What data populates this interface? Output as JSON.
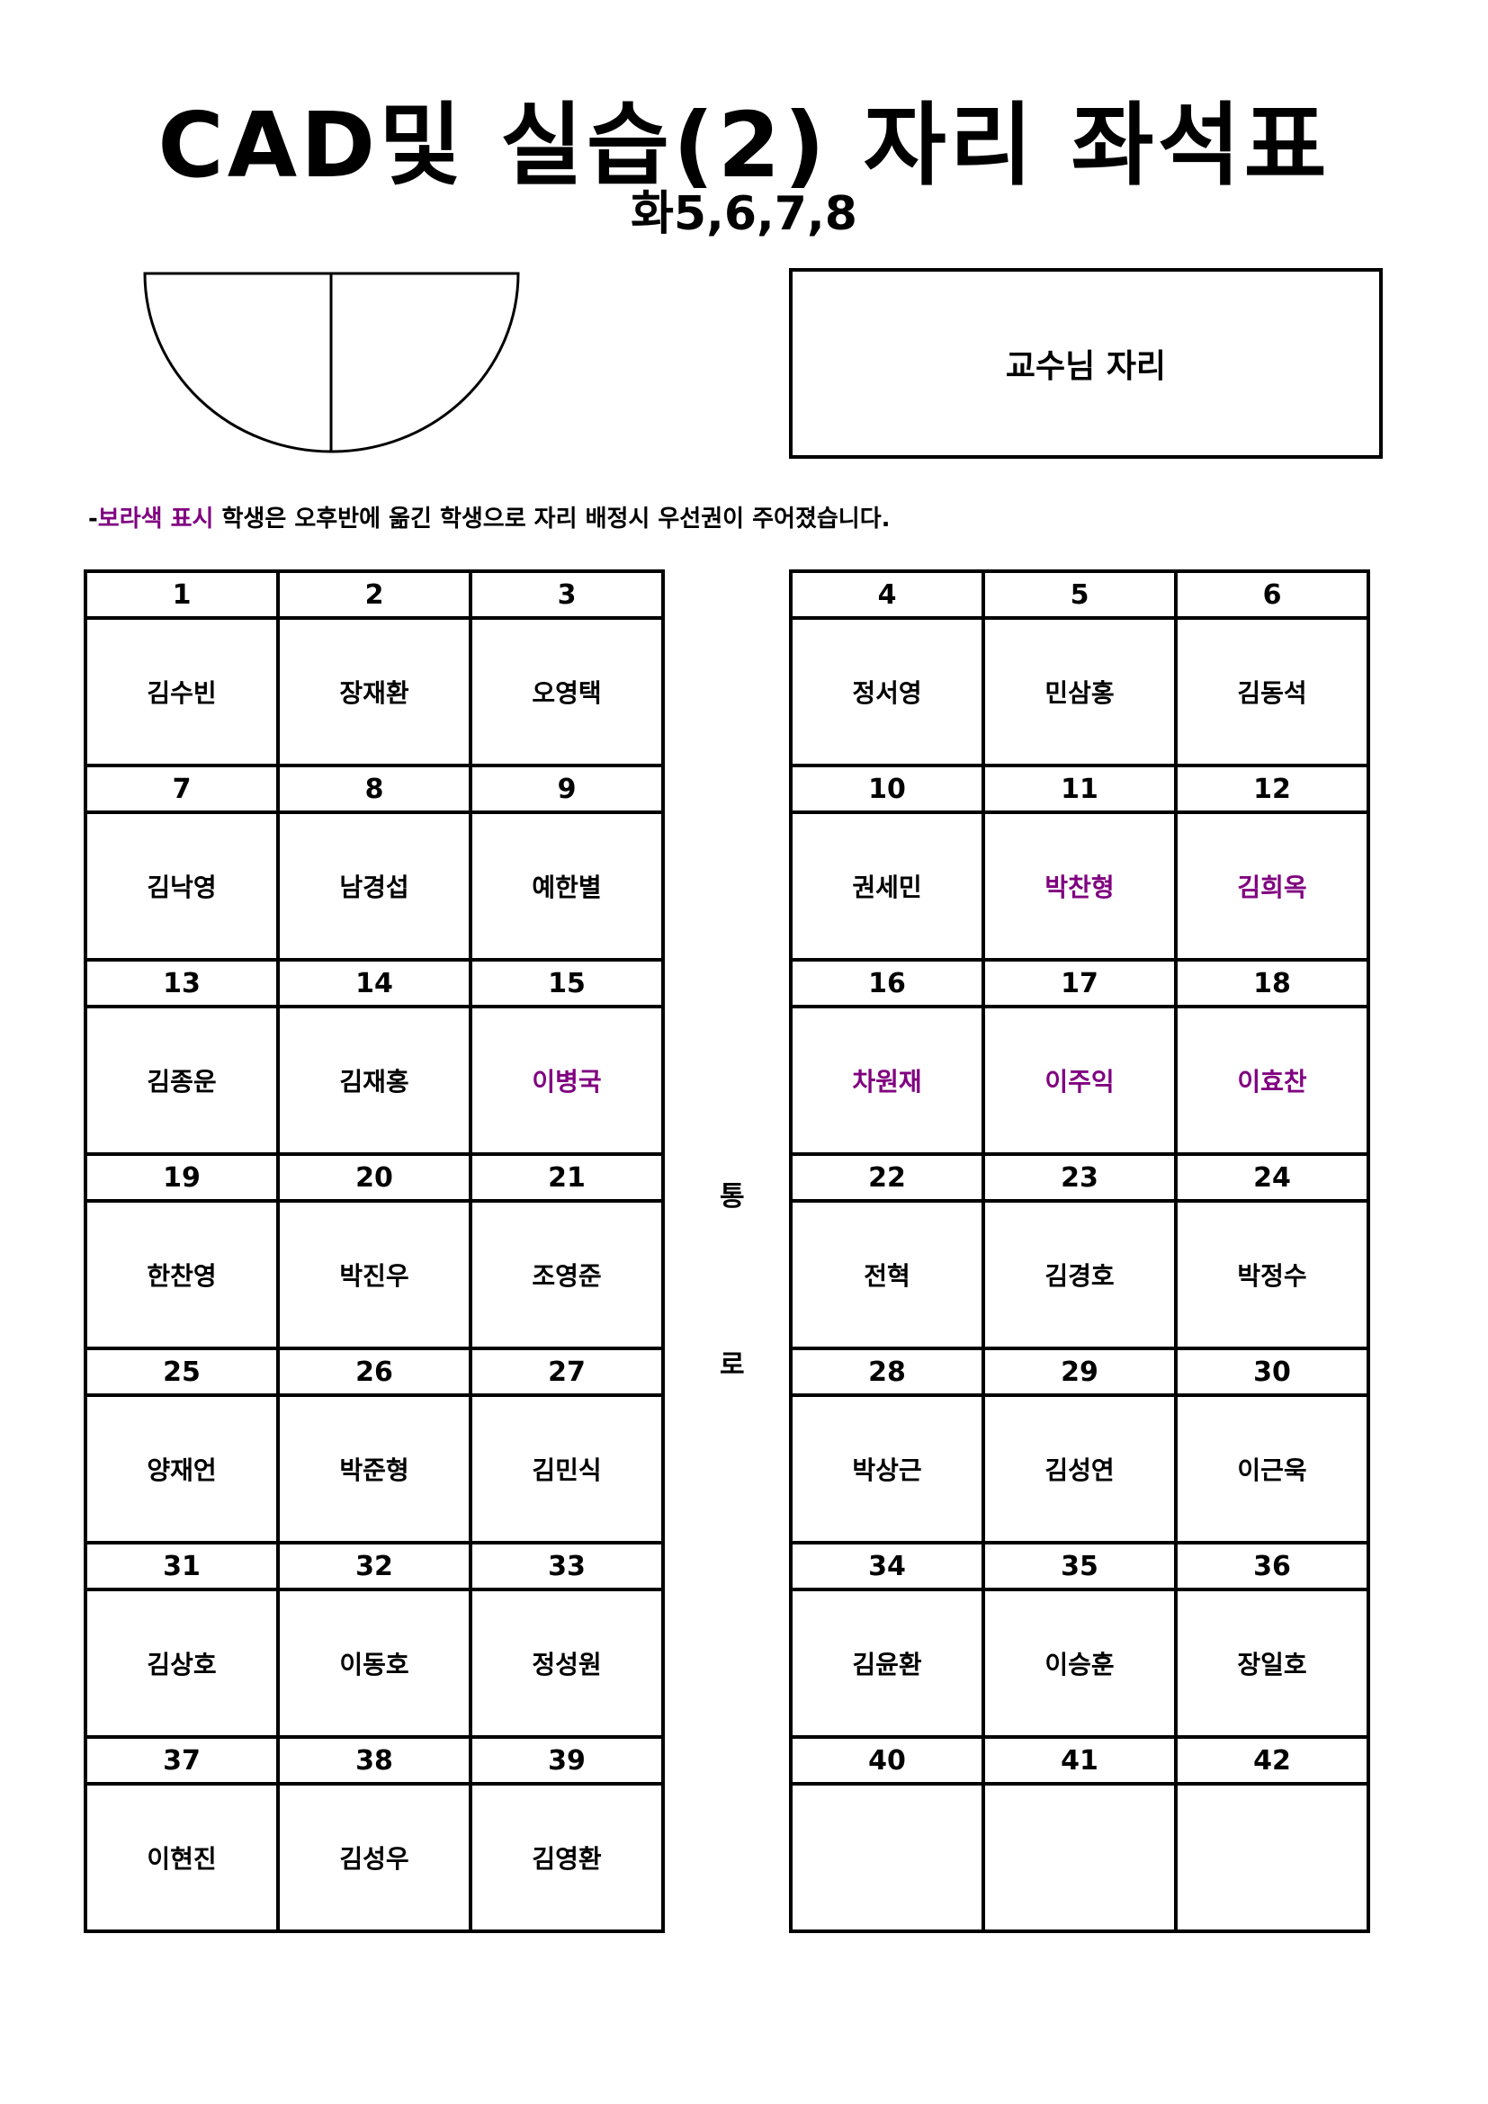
{
  "title": "CAD및 실습(2) 자리 좌석표",
  "subtitle": "화5,6,7,8",
  "professor_seat": "교수님 자리",
  "note": {
    "prefix": "-",
    "highlight": "보라색 표시",
    "rest": " 학생은 오후반에 옮긴 학생으로 자리 배정시 우선권이 주어졌습니다."
  },
  "aisle": [
    "통",
    "로"
  ],
  "colors": {
    "highlight": "#800080",
    "text": "#000000"
  },
  "left_seats": [
    {
      "n": "1",
      "name": "김수빈"
    },
    {
      "n": "2",
      "name": "장재환"
    },
    {
      "n": "3",
      "name": "오영택"
    },
    {
      "n": "7",
      "name": "김낙영"
    },
    {
      "n": "8",
      "name": "남경섭"
    },
    {
      "n": "9",
      "name": "예한별"
    },
    {
      "n": "13",
      "name": "김종운"
    },
    {
      "n": "14",
      "name": "김재홍"
    },
    {
      "n": "15",
      "name": "이병국",
      "purple": true
    },
    {
      "n": "19",
      "name": "한찬영"
    },
    {
      "n": "20",
      "name": "박진우"
    },
    {
      "n": "21",
      "name": "조영준"
    },
    {
      "n": "25",
      "name": "양재언"
    },
    {
      "n": "26",
      "name": "박준형"
    },
    {
      "n": "27",
      "name": "김민식"
    },
    {
      "n": "31",
      "name": "김상호"
    },
    {
      "n": "32",
      "name": "이동호"
    },
    {
      "n": "33",
      "name": "정성원"
    },
    {
      "n": "37",
      "name": "이현진"
    },
    {
      "n": "38",
      "name": "김성우"
    },
    {
      "n": "39",
      "name": "김영환"
    }
  ],
  "right_seats": [
    {
      "n": "4",
      "name": "정서영"
    },
    {
      "n": "5",
      "name": "민삼홍"
    },
    {
      "n": "6",
      "name": "김동석"
    },
    {
      "n": "10",
      "name": "권세민"
    },
    {
      "n": "11",
      "name": "박찬형",
      "purple": true
    },
    {
      "n": "12",
      "name": "김희옥",
      "purple": true
    },
    {
      "n": "16",
      "name": "차원재",
      "purple": true
    },
    {
      "n": "17",
      "name": "이주익",
      "purple": true
    },
    {
      "n": "18",
      "name": "이효찬",
      "purple": true
    },
    {
      "n": "22",
      "name": "전혁"
    },
    {
      "n": "23",
      "name": "김경호"
    },
    {
      "n": "24",
      "name": "박정수"
    },
    {
      "n": "28",
      "name": "박상근"
    },
    {
      "n": "29",
      "name": "김성연"
    },
    {
      "n": "30",
      "name": "이근욱"
    },
    {
      "n": "34",
      "name": "김윤환"
    },
    {
      "n": "35",
      "name": "이승훈"
    },
    {
      "n": "36",
      "name": "장일호"
    },
    {
      "n": "40",
      "name": ""
    },
    {
      "n": "41",
      "name": ""
    },
    {
      "n": "42",
      "name": ""
    }
  ]
}
